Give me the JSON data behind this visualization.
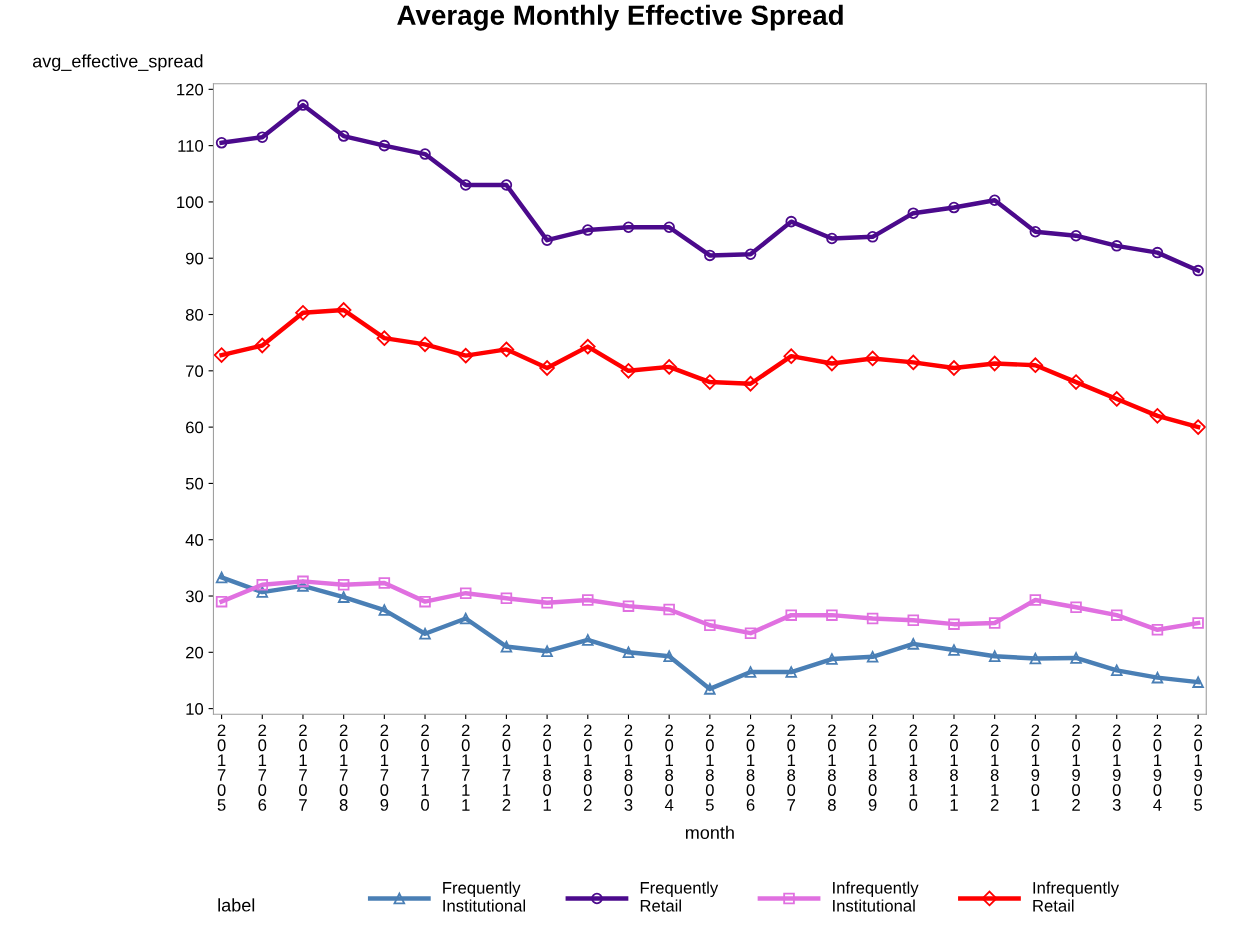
{
  "chart_data": {
    "type": "line",
    "title": "Average Monthly Effective Spread",
    "xlabel": "month",
    "ylabel": "avg_effective_spread",
    "legend_title": "label",
    "categories": [
      "201705",
      "201706",
      "201707",
      "201708",
      "201709",
      "201710",
      "201711",
      "201712",
      "201801",
      "201802",
      "201803",
      "201804",
      "201805",
      "201806",
      "201807",
      "201808",
      "201809",
      "201810",
      "201811",
      "201812",
      "201901",
      "201902",
      "201903",
      "201904",
      "201905"
    ],
    "series": [
      {
        "name": "Frequently Institutional",
        "color": "#4a7fb5",
        "marker": "triangle",
        "values": [
          33.3,
          30.7,
          31.8,
          29.8,
          27.5,
          23.3,
          26,
          21,
          20.2,
          22.2,
          20,
          19.3,
          13.5,
          16.5,
          16.5,
          18.8,
          19.2,
          21.5,
          20.4,
          19.3,
          18.9,
          19,
          16.8,
          15.5,
          14.7
        ]
      },
      {
        "name": "Frequently Retail",
        "color": "#4b0a8c",
        "marker": "circle",
        "values": [
          110.5,
          111.5,
          117.2,
          111.7,
          110,
          108.5,
          103,
          103,
          93.2,
          95,
          95.5,
          95.5,
          90.5,
          90.7,
          96.5,
          93.5,
          93.8,
          98,
          99,
          100.3,
          94.7,
          94,
          92.2,
          91,
          87.8
        ]
      },
      {
        "name": "Infrequently Institutional",
        "color": "#e070e0",
        "marker": "square",
        "values": [
          29,
          32,
          32.6,
          32,
          32.3,
          29,
          30.5,
          29.6,
          28.8,
          29.3,
          28.2,
          27.6,
          24.8,
          23.4,
          26.6,
          26.6,
          26,
          25.7,
          25,
          25.2,
          29.3,
          28,
          26.6,
          24,
          25.2
        ]
      },
      {
        "name": "Infrequently Retail",
        "color": "#ff0000",
        "marker": "diamond",
        "values": [
          72.8,
          74.5,
          80.3,
          80.8,
          75.8,
          74.7,
          72.7,
          73.8,
          70.5,
          74.3,
          70,
          70.7,
          68,
          67.7,
          72.6,
          71.3,
          72.2,
          71.5,
          70.5,
          71.3,
          71,
          68,
          65,
          62,
          60
        ]
      }
    ],
    "ylim": [
      9,
      121
    ],
    "yticks": [
      10,
      20,
      30,
      40,
      50,
      60,
      70,
      80,
      90,
      100,
      110,
      120
    ],
    "grid": false,
    "legend": "bottom",
    "line_style": "solid"
  }
}
